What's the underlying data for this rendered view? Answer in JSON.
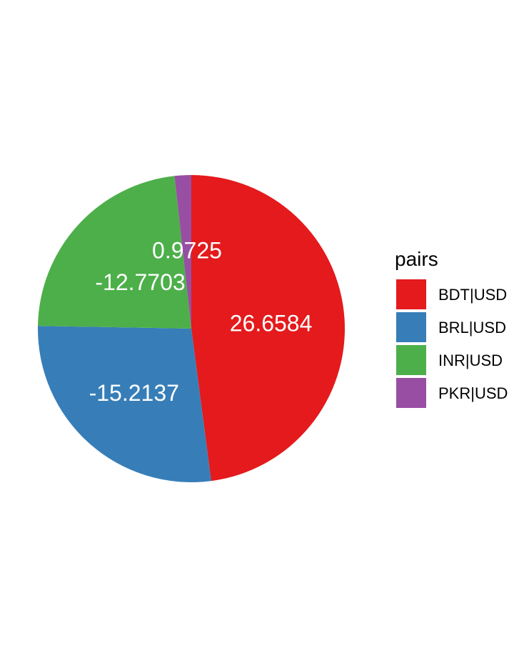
{
  "chart_data": {
    "type": "pie",
    "legend_title": "pairs",
    "legend_position": "right",
    "slices": [
      {
        "name": "BDT|USD",
        "value": 26.6584,
        "label": "26.6584",
        "color": "#E41A1C"
      },
      {
        "name": "BRL|USD",
        "value": -15.2137,
        "label": "-15.2137",
        "color": "#377EB8"
      },
      {
        "name": "INR|USD",
        "value": -12.7703,
        "label": "-12.7703",
        "color": "#4DAF4A"
      },
      {
        "name": "PKR|USD",
        "value": 0.9725,
        "label": "0.9725",
        "color": "#984EA3"
      }
    ]
  }
}
